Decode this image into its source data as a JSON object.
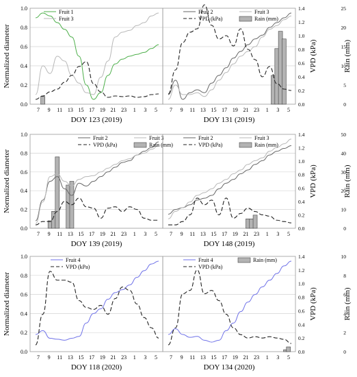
{
  "chart_data": [
    {
      "type": "line",
      "panel": "top-left",
      "xlabel": "DOY 123 (2019)",
      "ylabel": "Normalized diameter",
      "y2label": "",
      "x_ticks": [
        "7",
        "9",
        "11",
        "13",
        "15",
        "17",
        "19",
        "21",
        "23",
        "1",
        "3",
        "5"
      ],
      "ylim": [
        0,
        1.0
      ],
      "y_ticks": [
        "0.0",
        "0.2",
        "0.4",
        "0.6",
        "0.8",
        "1.0"
      ],
      "vpd_lim": [
        0,
        1.4
      ],
      "rain_lim": [
        0,
        25
      ],
      "legend": {
        "placement": "top-left",
        "entries": [
          "Fruit 1",
          "Fruit 3"
        ]
      },
      "series": [
        {
          "name": "Fruit 1",
          "style": "green",
          "values": [
            0.9,
            0.95,
            0.92,
            0.85,
            0.78,
            0.7,
            0.5,
            0.2,
            0.05,
            0.12,
            0.3,
            0.42,
            0.47,
            0.5,
            0.52,
            0.54,
            0.58,
            0.62
          ]
        },
        {
          "name": "Fruit 3",
          "style": "lightgray",
          "values": [
            0.1,
            0.4,
            0.32,
            0.5,
            0.45,
            0.3,
            0.22,
            0.12,
            0.1,
            0.28,
            0.45,
            0.7,
            0.75,
            0.77,
            0.82,
            0.85,
            0.92,
            0.95
          ]
        },
        {
          "name": "VPD (kPa)",
          "axis": "vpd",
          "values": [
            0.07,
            0.12,
            0.18,
            0.22,
            0.32,
            0.42,
            0.55,
            0.62,
            0.3,
            0.18,
            0.1,
            0.12,
            0.11,
            0.12,
            0.1,
            0.11,
            0.14,
            0.15
          ]
        },
        {
          "name": "Rain (mm)",
          "axis": "rain",
          "type": "bar",
          "bars": [
            {
              "x": 1,
              "value": 2
            }
          ]
        }
      ]
    },
    {
      "type": "line",
      "panel": "top-right",
      "xlabel": "DOY 131 (2019)",
      "ylabel": "",
      "y2label": "VPD (kPa)",
      "y3label": "Rain (mm)",
      "x_ticks": [
        "7",
        "9",
        "11",
        "13",
        "15",
        "17",
        "19",
        "21",
        "23",
        "1",
        "3",
        "5"
      ],
      "ylim": [
        0,
        1.0
      ],
      "vpd_lim": [
        0,
        1.4
      ],
      "vpd_ticks": [
        "0.0",
        "0.2",
        "0.4",
        "0.6",
        "0.8",
        "1.0",
        "1.2",
        "1.4"
      ],
      "rain_lim": [
        0,
        25
      ],
      "rain_ticks": [
        "0",
        "5",
        "10",
        "15",
        "20",
        "25"
      ],
      "legend": {
        "placement": "top",
        "entries": [
          "Fruit 2",
          "Fruit 3",
          "VPD (kPa)",
          "Rain (mm)"
        ]
      },
      "series": [
        {
          "name": "Fruit 2",
          "style": "darkgray",
          "values": [
            0.1,
            0.25,
            0.05,
            0.12,
            0.15,
            0.12,
            0.22,
            0.3,
            0.38,
            0.48,
            0.55,
            0.62,
            0.68,
            0.72,
            0.8,
            0.85,
            0.9,
            0.95
          ]
        },
        {
          "name": "Fruit 3",
          "style": "lightgray",
          "values": [
            0.05,
            0.2,
            0.1,
            0.1,
            0.12,
            0.08,
            0.15,
            0.25,
            0.33,
            0.42,
            0.5,
            0.55,
            0.6,
            0.7,
            0.78,
            0.82,
            0.88,
            0.92
          ]
        },
        {
          "name": "VPD (kPa)",
          "axis": "vpd",
          "values": [
            0.15,
            0.5,
            0.9,
            1.05,
            1.1,
            1.45,
            1.15,
            0.95,
            1.0,
            0.85,
            1.1,
            0.8,
            0.65,
            0.4,
            0.55,
            0.3,
            0.22,
            0.2
          ]
        },
        {
          "name": "Rain (mm)",
          "axis": "rain",
          "type": "bar",
          "bars": [
            {
              "x": 14.5,
              "value": 7.5
            },
            {
              "x": 15.0,
              "value": 14.5
            },
            {
              "x": 15.5,
              "value": 19
            },
            {
              "x": 16.0,
              "value": 17
            }
          ]
        }
      ]
    },
    {
      "type": "line",
      "panel": "middle-left",
      "xlabel": "DOY 139 (2019)",
      "ylabel": "Normalized diameter",
      "x_ticks": [
        "7",
        "9",
        "11",
        "13",
        "15",
        "17",
        "19",
        "21",
        "23",
        "1",
        "3",
        "5"
      ],
      "ylim": [
        0,
        1.0
      ],
      "y_ticks": [
        "0.0",
        "0.2",
        "0.4",
        "0.6",
        "0.8",
        "1.0"
      ],
      "vpd_lim": [
        0,
        1.4
      ],
      "rain_lim": [
        0,
        50
      ],
      "legend": {
        "placement": "top-right",
        "entries": [
          "Fruit 2",
          "Fruit 3",
          "VPD (kPa)",
          "Rain (mm)"
        ]
      },
      "series": [
        {
          "name": "Fruit 2",
          "style": "darkgray",
          "values": [
            0.08,
            0.3,
            0.5,
            0.55,
            0.42,
            0.35,
            0.48,
            0.45,
            0.5,
            0.55,
            0.6,
            0.65,
            0.7,
            0.72,
            0.78,
            0.82,
            0.86,
            0.92
          ]
        },
        {
          "name": "Fruit 3",
          "style": "lightgray",
          "values": [
            0.05,
            0.28,
            0.55,
            0.58,
            0.5,
            0.45,
            0.52,
            0.55,
            0.56,
            0.6,
            0.64,
            0.68,
            0.72,
            0.74,
            0.78,
            0.8,
            0.84,
            0.88
          ]
        },
        {
          "name": "VPD (kPa)",
          "axis": "vpd",
          "values": [
            0.05,
            0.1,
            0.1,
            0.25,
            0.4,
            0.35,
            0.45,
            0.32,
            0.3,
            0.15,
            0.3,
            0.32,
            0.25,
            0.32,
            0.28,
            0.15,
            0.12,
            0.12
          ]
        },
        {
          "name": "Rain (mm)",
          "axis": "rain",
          "type": "bar",
          "bars": [
            {
              "x": 2.0,
              "value": 4
            },
            {
              "x": 2.5,
              "value": 9
            },
            {
              "x": 3.0,
              "value": 38
            },
            {
              "x": 4.5,
              "value": 23
            },
            {
              "x": 5.0,
              "value": 25
            }
          ]
        }
      ]
    },
    {
      "type": "line",
      "panel": "middle-right",
      "xlabel": "DOY 148 (2019)",
      "y2label": "VPD (kPa)",
      "y3label": "Rain (mm)",
      "x_ticks": [
        "7",
        "9",
        "11",
        "13",
        "15",
        "17",
        "19",
        "21",
        "23",
        "1",
        "3",
        "5"
      ],
      "ylim": [
        0,
        1.0
      ],
      "vpd_lim": [
        0,
        1.4
      ],
      "vpd_ticks": [
        "0.0",
        "0.2",
        "0.4",
        "0.6",
        "0.8",
        "1.0",
        "1.2",
        "1.4"
      ],
      "rain_lim": [
        0,
        50
      ],
      "rain_ticks": [
        "0",
        "10",
        "20",
        "30",
        "40",
        "50"
      ],
      "legend": {
        "placement": "top",
        "entries": [
          "Fruit 2",
          "Fruit 3",
          "VPD (kPa)",
          "Rain (mm)"
        ]
      },
      "series": [
        {
          "name": "Fruit 2",
          "style": "darkgray",
          "values": [
            0.15,
            0.2,
            0.22,
            0.25,
            0.3,
            0.32,
            0.35,
            0.42,
            0.48,
            0.52,
            0.58,
            0.62,
            0.68,
            0.72,
            0.78,
            0.82,
            0.85,
            0.88
          ]
        },
        {
          "name": "Fruit 3",
          "style": "lightgray",
          "values": [
            0.1,
            0.18,
            0.22,
            0.28,
            0.35,
            0.38,
            0.42,
            0.48,
            0.52,
            0.58,
            0.62,
            0.68,
            0.72,
            0.75,
            0.82,
            0.86,
            0.9,
            0.95
          ]
        },
        {
          "name": "VPD (kPa)",
          "axis": "vpd",
          "values": [
            0.05,
            0.05,
            0.1,
            0.2,
            0.45,
            0.35,
            0.42,
            0.2,
            0.45,
            0.15,
            0.22,
            0.3,
            0.25,
            0.2,
            0.18,
            0.12,
            0.1,
            0.08
          ]
        },
        {
          "name": "Rain (mm)",
          "axis": "rain",
          "type": "bar",
          "bars": [
            {
              "x": 11.0,
              "value": 5
            },
            {
              "x": 11.5,
              "value": 5
            },
            {
              "x": 12.0,
              "value": 7
            }
          ]
        }
      ]
    },
    {
      "type": "line",
      "panel": "bottom-left",
      "xlabel": "DOY 118 (2020)",
      "ylabel": "Normalized diameter",
      "x_ticks": [
        "7",
        "9",
        "11",
        "13",
        "15",
        "17",
        "19",
        "21",
        "23",
        "1",
        "3",
        "5"
      ],
      "ylim": [
        0,
        1.0
      ],
      "y_ticks": [
        "0.0",
        "0.2",
        "0.4",
        "0.6",
        "0.8",
        "1.0"
      ],
      "vpd_lim": [
        0,
        1.4
      ],
      "rain_lim": [
        0,
        10
      ],
      "legend": {
        "placement": "top",
        "entries": [
          "Fruit 4",
          "VPD (kPa)"
        ]
      },
      "series": [
        {
          "name": "Fruit 4",
          "style": "blue",
          "values": [
            0.18,
            0.22,
            0.14,
            0.13,
            0.12,
            0.14,
            0.16,
            0.3,
            0.4,
            0.45,
            0.55,
            0.62,
            0.65,
            0.7,
            0.78,
            0.85,
            0.92,
            0.95
          ]
        },
        {
          "name": "VPD (kPa)",
          "axis": "vpd",
          "values": [
            0.1,
            0.55,
            1.18,
            1.05,
            1.05,
            1.02,
            0.75,
            0.65,
            0.62,
            0.68,
            0.55,
            0.78,
            0.95,
            0.9,
            0.7,
            0.5,
            0.35,
            0.2
          ]
        }
      ]
    },
    {
      "type": "line",
      "panel": "bottom-right",
      "xlabel": "DOY 134 (2020)",
      "y2label": "VPD (kPa)",
      "y3label": "Rain (mm)",
      "x_ticks": [
        "7",
        "9",
        "11",
        "13",
        "15",
        "17",
        "19",
        "21",
        "23",
        "1",
        "3",
        "5"
      ],
      "ylim": [
        0,
        1.0
      ],
      "vpd_lim": [
        0,
        1.4
      ],
      "vpd_ticks": [
        "0.0",
        "0.2",
        "0.4",
        "0.6",
        "0.8",
        "1.0",
        "1.2",
        "1.4"
      ],
      "rain_lim": [
        0,
        10
      ],
      "rain_ticks": [
        "0",
        "2",
        "4",
        "6",
        "8",
        "10"
      ],
      "legend": {
        "placement": "top",
        "entries": [
          "Fruit 4",
          "Rain (mm)",
          "VPD (kPa)"
        ]
      },
      "series": [
        {
          "name": "Fruit 4",
          "style": "blue",
          "values": [
            0.18,
            0.24,
            0.18,
            0.15,
            0.16,
            0.12,
            0.1,
            0.12,
            0.22,
            0.3,
            0.42,
            0.52,
            0.6,
            0.68,
            0.75,
            0.82,
            0.9,
            0.95
          ]
        },
        {
          "name": "VPD (kPa)",
          "axis": "vpd",
          "values": [
            0.1,
            0.35,
            0.85,
            0.9,
            1.2,
            0.85,
            0.9,
            0.75,
            0.55,
            0.35,
            0.25,
            0.2,
            0.22,
            0.2,
            0.22,
            0.2,
            0.18,
            0.12
          ]
        },
        {
          "name": "Rain (mm)",
          "axis": "rain",
          "type": "bar",
          "bars": [
            {
              "x": 16.2,
              "value": 0.2
            },
            {
              "x": 16.6,
              "value": 0.5
            }
          ]
        }
      ]
    }
  ],
  "colors": {
    "green": "#4daf4a",
    "blue": "#6f72e8",
    "darkgray": "#666666",
    "lightgray": "#b8b8b8",
    "bar": "#b3b3b3"
  }
}
